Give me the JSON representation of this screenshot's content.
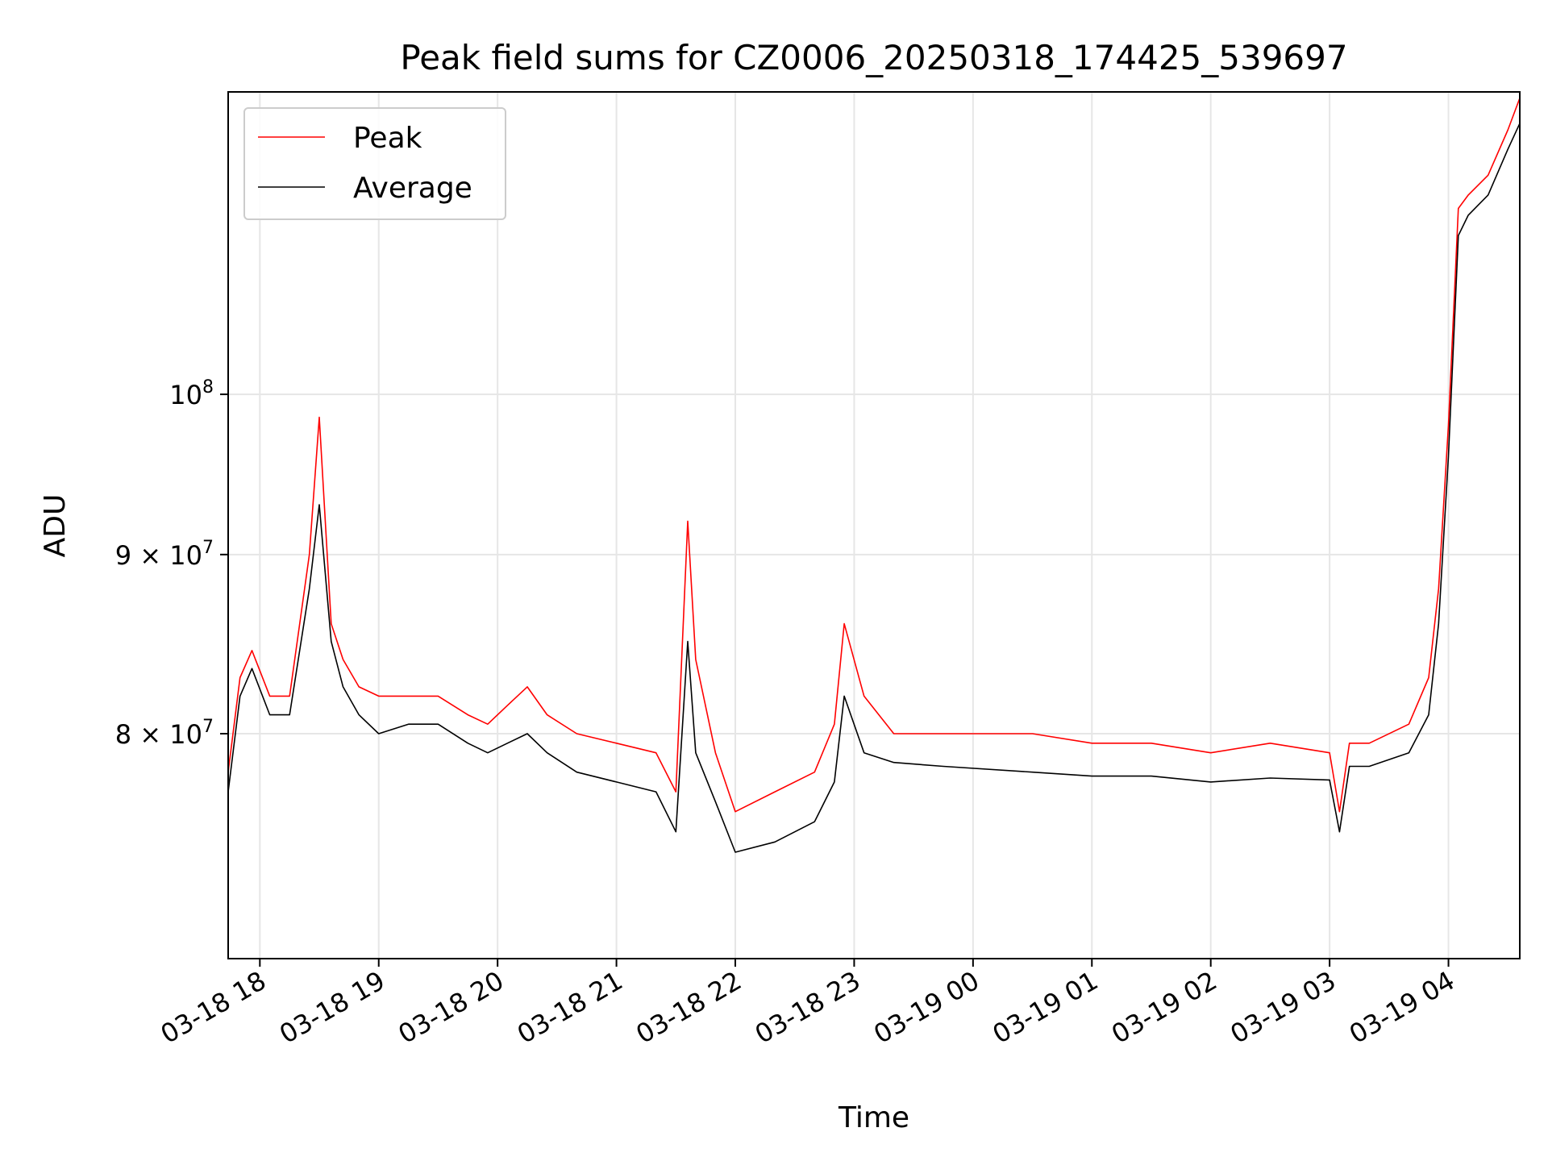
{
  "chart_data": {
    "type": "line",
    "title": "Peak field sums for CZ0006_20250318_174425_539697",
    "xlabel": "Time",
    "ylabel": "ADU",
    "y_scale": "log",
    "ylim": [
      69000000,
      122000000
    ],
    "xlim": [
      "2025-03-18 17:44",
      "2025-03-19 04:36"
    ],
    "grid": true,
    "legend_position": "upper left",
    "x_ticks": [
      {
        "t": "2025-03-18 18:00",
        "label": "03-18 18"
      },
      {
        "t": "2025-03-18 19:00",
        "label": "03-18 19"
      },
      {
        "t": "2025-03-18 20:00",
        "label": "03-18 20"
      },
      {
        "t": "2025-03-18 21:00",
        "label": "03-18 21"
      },
      {
        "t": "2025-03-18 22:00",
        "label": "03-18 22"
      },
      {
        "t": "2025-03-18 23:00",
        "label": "03-18 23"
      },
      {
        "t": "2025-03-19 00:00",
        "label": "03-19 00"
      },
      {
        "t": "2025-03-19 01:00",
        "label": "03-19 01"
      },
      {
        "t": "2025-03-19 02:00",
        "label": "03-19 02"
      },
      {
        "t": "2025-03-19 03:00",
        "label": "03-19 03"
      },
      {
        "t": "2025-03-19 04:00",
        "label": "03-19 04"
      }
    ],
    "y_ticks": [
      {
        "value": 80000000,
        "base": "8 × 10",
        "exp": "7"
      },
      {
        "value": 90000000,
        "base": "9 × 10",
        "exp": "7"
      },
      {
        "value": 100000000,
        "base": "10",
        "exp": "8"
      }
    ],
    "series": [
      {
        "name": "Peak",
        "color": "#ff0000",
        "x": [
          "2025-03-18 17:44",
          "2025-03-18 17:50",
          "2025-03-18 17:56",
          "2025-03-18 18:05",
          "2025-03-18 18:15",
          "2025-03-18 18:25",
          "2025-03-18 18:30",
          "2025-03-18 18:36",
          "2025-03-18 18:42",
          "2025-03-18 18:50",
          "2025-03-18 19:00",
          "2025-03-18 19:15",
          "2025-03-18 19:30",
          "2025-03-18 19:45",
          "2025-03-18 19:55",
          "2025-03-18 20:05",
          "2025-03-18 20:15",
          "2025-03-18 20:25",
          "2025-03-18 20:40",
          "2025-03-18 21:00",
          "2025-03-18 21:20",
          "2025-03-18 21:30",
          "2025-03-18 21:36",
          "2025-03-18 21:40",
          "2025-03-18 21:50",
          "2025-03-18 22:00",
          "2025-03-18 22:20",
          "2025-03-18 22:40",
          "2025-03-18 22:50",
          "2025-03-18 22:55",
          "2025-03-18 23:05",
          "2025-03-18 23:20",
          "2025-03-18 23:45",
          "2025-03-19 00:30",
          "2025-03-19 01:00",
          "2025-03-19 01:30",
          "2025-03-19 02:00",
          "2025-03-19 02:30",
          "2025-03-19 03:00",
          "2025-03-19 03:05",
          "2025-03-19 03:10",
          "2025-03-19 03:20",
          "2025-03-19 03:40",
          "2025-03-19 03:50",
          "2025-03-19 03:55",
          "2025-03-19 04:00",
          "2025-03-19 04:05",
          "2025-03-19 04:10",
          "2025-03-19 04:20",
          "2025-03-19 04:30",
          "2025-03-19 04:36"
        ],
        "values": [
          78000000,
          83000000,
          84500000,
          82000000,
          82000000,
          90000000,
          98500000,
          86000000,
          84000000,
          82500000,
          82000000,
          82000000,
          82000000,
          81000000,
          80500000,
          81500000,
          82500000,
          81000000,
          80000000,
          79500000,
          79000000,
          77000000,
          92000000,
          84000000,
          79000000,
          76000000,
          77000000,
          78000000,
          80500000,
          86000000,
          82000000,
          80000000,
          80000000,
          80000000,
          79500000,
          79500000,
          79000000,
          79500000,
          79000000,
          76000000,
          79500000,
          79500000,
          80500000,
          83000000,
          88000000,
          98000000,
          113000000,
          114000000,
          115500000,
          119000000,
          121500000
        ]
      },
      {
        "name": "Average",
        "color": "#000000",
        "x": [
          "2025-03-18 17:44",
          "2025-03-18 17:50",
          "2025-03-18 17:56",
          "2025-03-18 18:05",
          "2025-03-18 18:15",
          "2025-03-18 18:25",
          "2025-03-18 18:30",
          "2025-03-18 18:36",
          "2025-03-18 18:42",
          "2025-03-18 18:50",
          "2025-03-18 19:00",
          "2025-03-18 19:15",
          "2025-03-18 19:30",
          "2025-03-18 19:45",
          "2025-03-18 19:55",
          "2025-03-18 20:05",
          "2025-03-18 20:15",
          "2025-03-18 20:25",
          "2025-03-18 20:40",
          "2025-03-18 21:00",
          "2025-03-18 21:20",
          "2025-03-18 21:30",
          "2025-03-18 21:36",
          "2025-03-18 21:40",
          "2025-03-18 21:50",
          "2025-03-18 22:00",
          "2025-03-18 22:20",
          "2025-03-18 22:40",
          "2025-03-18 22:50",
          "2025-03-18 22:55",
          "2025-03-18 23:05",
          "2025-03-18 23:20",
          "2025-03-18 23:45",
          "2025-03-19 00:30",
          "2025-03-19 01:00",
          "2025-03-19 01:30",
          "2025-03-19 02:00",
          "2025-03-19 02:30",
          "2025-03-19 03:00",
          "2025-03-19 03:05",
          "2025-03-19 03:10",
          "2025-03-19 03:20",
          "2025-03-19 03:40",
          "2025-03-19 03:50",
          "2025-03-19 03:55",
          "2025-03-19 04:00",
          "2025-03-19 04:05",
          "2025-03-19 04:10",
          "2025-03-19 04:20",
          "2025-03-19 04:30",
          "2025-03-19 04:36"
        ],
        "values": [
          77000000,
          82000000,
          83500000,
          81000000,
          81000000,
          88000000,
          93000000,
          85000000,
          82500000,
          81000000,
          80000000,
          80500000,
          80500000,
          79500000,
          79000000,
          79500000,
          80000000,
          79000000,
          78000000,
          77500000,
          77000000,
          75000000,
          85000000,
          79000000,
          76500000,
          74000000,
          74500000,
          75500000,
          77500000,
          82000000,
          79000000,
          78500000,
          78300000,
          78000000,
          77800000,
          77800000,
          77500000,
          77700000,
          77600000,
          75000000,
          78300000,
          78300000,
          79000000,
          81000000,
          86000000,
          96000000,
          111000000,
          112500000,
          114000000,
          117500000,
          119500000
        ]
      }
    ]
  }
}
